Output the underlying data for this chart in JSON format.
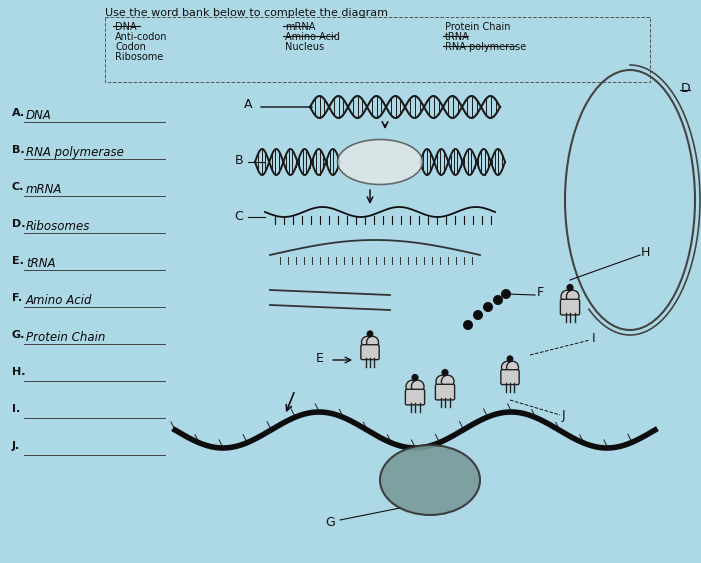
{
  "bg_color": "#add8e6",
  "paper_color": "#c8e8f0",
  "title": "Use the word bank below to complete the diagram",
  "title_fontsize": 8,
  "wb_dna": "DNA",
  "wb_anticodon": "Anti-codon",
  "wb_codon": "Codon",
  "wb_ribosome": "Ribosome",
  "wb_mrna": "mRNA",
  "wb_aminoacid": "Amino Acid",
  "wb_nucleus": "Nucleus",
  "wb_proteinchain": "Protein Chain",
  "wb_trna": "tRNA",
  "wb_rnapolym": "RNA polymerase",
  "ans_A": "DNA",
  "ans_B": "RNA polymerase",
  "ans_C": "mRNA",
  "ans_D": "Ribosomes",
  "ans_E": "tRNA",
  "ans_F": "Amino Acid",
  "ans_G": "Protein Chain",
  "lc": "#111111",
  "tc": "#111111",
  "hc": "#111111",
  "dna_lw": 1.8,
  "helix_color": "#222222",
  "ribosome_color": "#7a9a9a"
}
